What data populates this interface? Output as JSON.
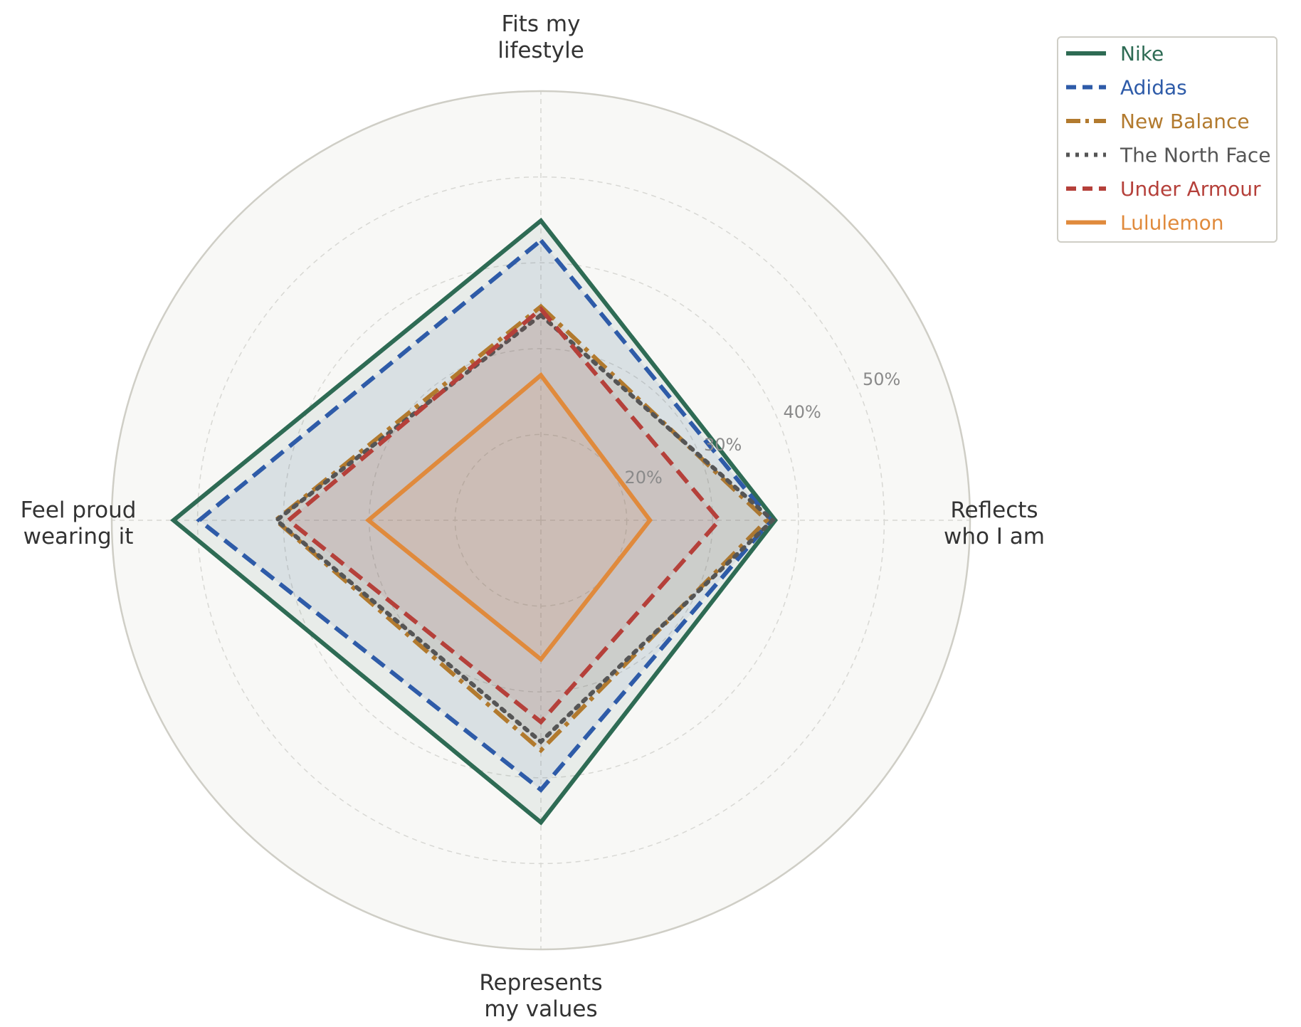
{
  "chart_data": {
    "type": "radar",
    "axes": [
      [
        "Fits my",
        "lifestyle"
      ],
      [
        "Reflects",
        "who I am"
      ],
      [
        "Represents",
        "my values"
      ],
      [
        "Feel proud",
        "wearing it"
      ]
    ],
    "radial_ticks": [
      20,
      30,
      40,
      50
    ],
    "radial_tick_labels": [
      "20%",
      "30%",
      "40%",
      "50%"
    ],
    "rmin": 10,
    "rmax": 60,
    "grid": true,
    "legend_position": "top-right",
    "series": [
      {
        "name": "Nike",
        "values": [
          44.9,
          37.3,
          45.2,
          52.8
        ],
        "color": "#2e6b54",
        "style": "solid",
        "fill": true
      },
      {
        "name": "Adidas",
        "values": [
          42.6,
          36.8,
          41.4,
          49.8
        ],
        "color": "#2e5ba8",
        "style": "dashed",
        "fill": true
      },
      {
        "name": "New Balance",
        "values": [
          34.9,
          36.3,
          36.8,
          40.9
        ],
        "color": "#b27a2e",
        "style": "dashdot",
        "fill": true
      },
      {
        "name": "The North Face",
        "values": [
          33.9,
          37.0,
          35.8,
          40.8
        ],
        "color": "#555555",
        "style": "dotted",
        "fill": true
      },
      {
        "name": "Under Armour",
        "values": [
          34.6,
          30.8,
          33.5,
          39.4
        ],
        "color": "#b5403a",
        "style": "dashed",
        "fill": true
      },
      {
        "name": "Lululemon",
        "values": [
          26.9,
          22.7,
          26.2,
          30.1
        ],
        "color": "#e08a3c",
        "style": "solid",
        "fill": true
      }
    ]
  }
}
